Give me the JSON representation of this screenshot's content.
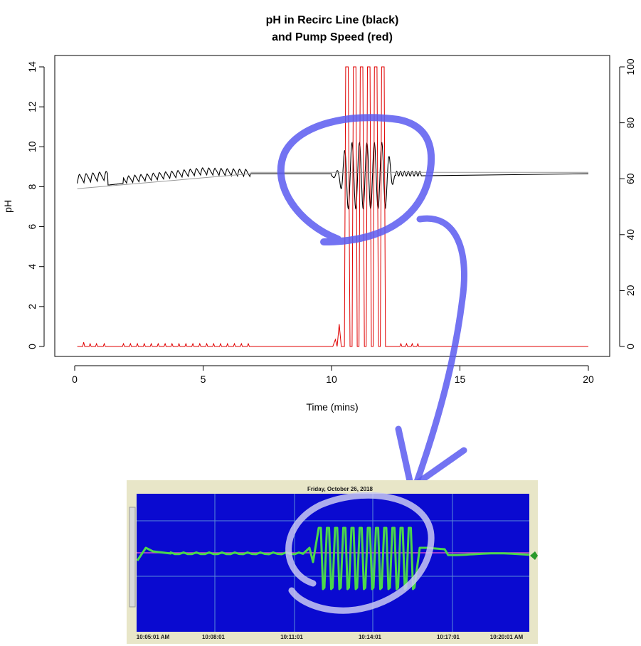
{
  "chart_data": [
    {
      "type": "line",
      "title": "pH in Recirc Line (black)\nand Pump Speed (red)",
      "xlabel": "Time (mins)",
      "ylabel": "pH",
      "xlim": [
        0,
        20
      ],
      "ylim": [
        0,
        14
      ],
      "y2lim": [
        0,
        100
      ],
      "x_ticks": [
        "0",
        "5",
        "10",
        "15",
        "20"
      ],
      "y_ticks": [
        "0",
        "2",
        "4",
        "6",
        "8",
        "10",
        "12",
        "14"
      ],
      "y2_ticks": [
        "0",
        "20",
        "40",
        "60",
        "80",
        "100"
      ],
      "grid": false,
      "series": [
        {
          "color": "#000000",
          "axis": "left",
          "points": [
            [
              0.1,
              7.9
            ],
            [
              0.3,
              8.35
            ],
            [
              0.5,
              8.3
            ],
            [
              0.7,
              8.35
            ],
            [
              0.9,
              8.35
            ],
            [
              1.15,
              8.4
            ],
            [
              1.3,
              8.0
            ],
            [
              2.0,
              8.15
            ],
            [
              2.5,
              8.5
            ],
            [
              3.0,
              8.55
            ],
            [
              3.5,
              8.65
            ],
            [
              4.0,
              8.75
            ],
            [
              4.5,
              8.8
            ],
            [
              5.0,
              8.85
            ],
            [
              5.5,
              8.8
            ],
            [
              6.0,
              8.75
            ],
            [
              6.5,
              8.75
            ],
            [
              6.85,
              8.65
            ],
            [
              10.0,
              8.65
            ],
            [
              10.15,
              8.1
            ],
            [
              10.45,
              9.45
            ],
            [
              10.65,
              6.9
            ],
            [
              10.8,
              10.1
            ],
            [
              10.95,
              6.8
            ],
            [
              11.1,
              10.1
            ],
            [
              11.25,
              6.8
            ],
            [
              11.4,
              10.1
            ],
            [
              11.55,
              6.8
            ],
            [
              11.7,
              10.1
            ],
            [
              11.85,
              6.8
            ],
            [
              12.05,
              10.15
            ],
            [
              12.3,
              8.3
            ],
            [
              12.5,
              8.75
            ],
            [
              13.0,
              8.75
            ],
            [
              13.5,
              8.65
            ],
            [
              20.0,
              8.65
            ]
          ]
        },
        {
          "color": "#e00000",
          "axis": "right",
          "points": [
            [
              0.1,
              0
            ],
            [
              0.35,
              1.5
            ],
            [
              0.6,
              1
            ],
            [
              0.9,
              1
            ],
            [
              1.15,
              1
            ],
            [
              2.0,
              1
            ],
            [
              4.0,
              1
            ],
            [
              6.0,
              1
            ],
            [
              6.85,
              0
            ],
            [
              10.0,
              0
            ],
            [
              10.15,
              2.5
            ],
            [
              10.3,
              8
            ],
            [
              10.55,
              100
            ],
            [
              10.85,
              100
            ],
            [
              11.1,
              100
            ],
            [
              11.4,
              100
            ],
            [
              11.65,
              100
            ],
            [
              11.95,
              100
            ],
            [
              12.1,
              0
            ],
            [
              13.5,
              0
            ],
            [
              20.0,
              0
            ]
          ]
        }
      ]
    },
    {
      "type": "line",
      "title": "Friday, October 26, 2018",
      "x_ticks": [
        "10:05:01 AM",
        "10:08:01",
        "10:11:01",
        "10:14:01",
        "10:17:01",
        "10:20:01 AM"
      ],
      "series": [
        {
          "color": "#55e055",
          "points": []
        }
      ]
    }
  ]
}
